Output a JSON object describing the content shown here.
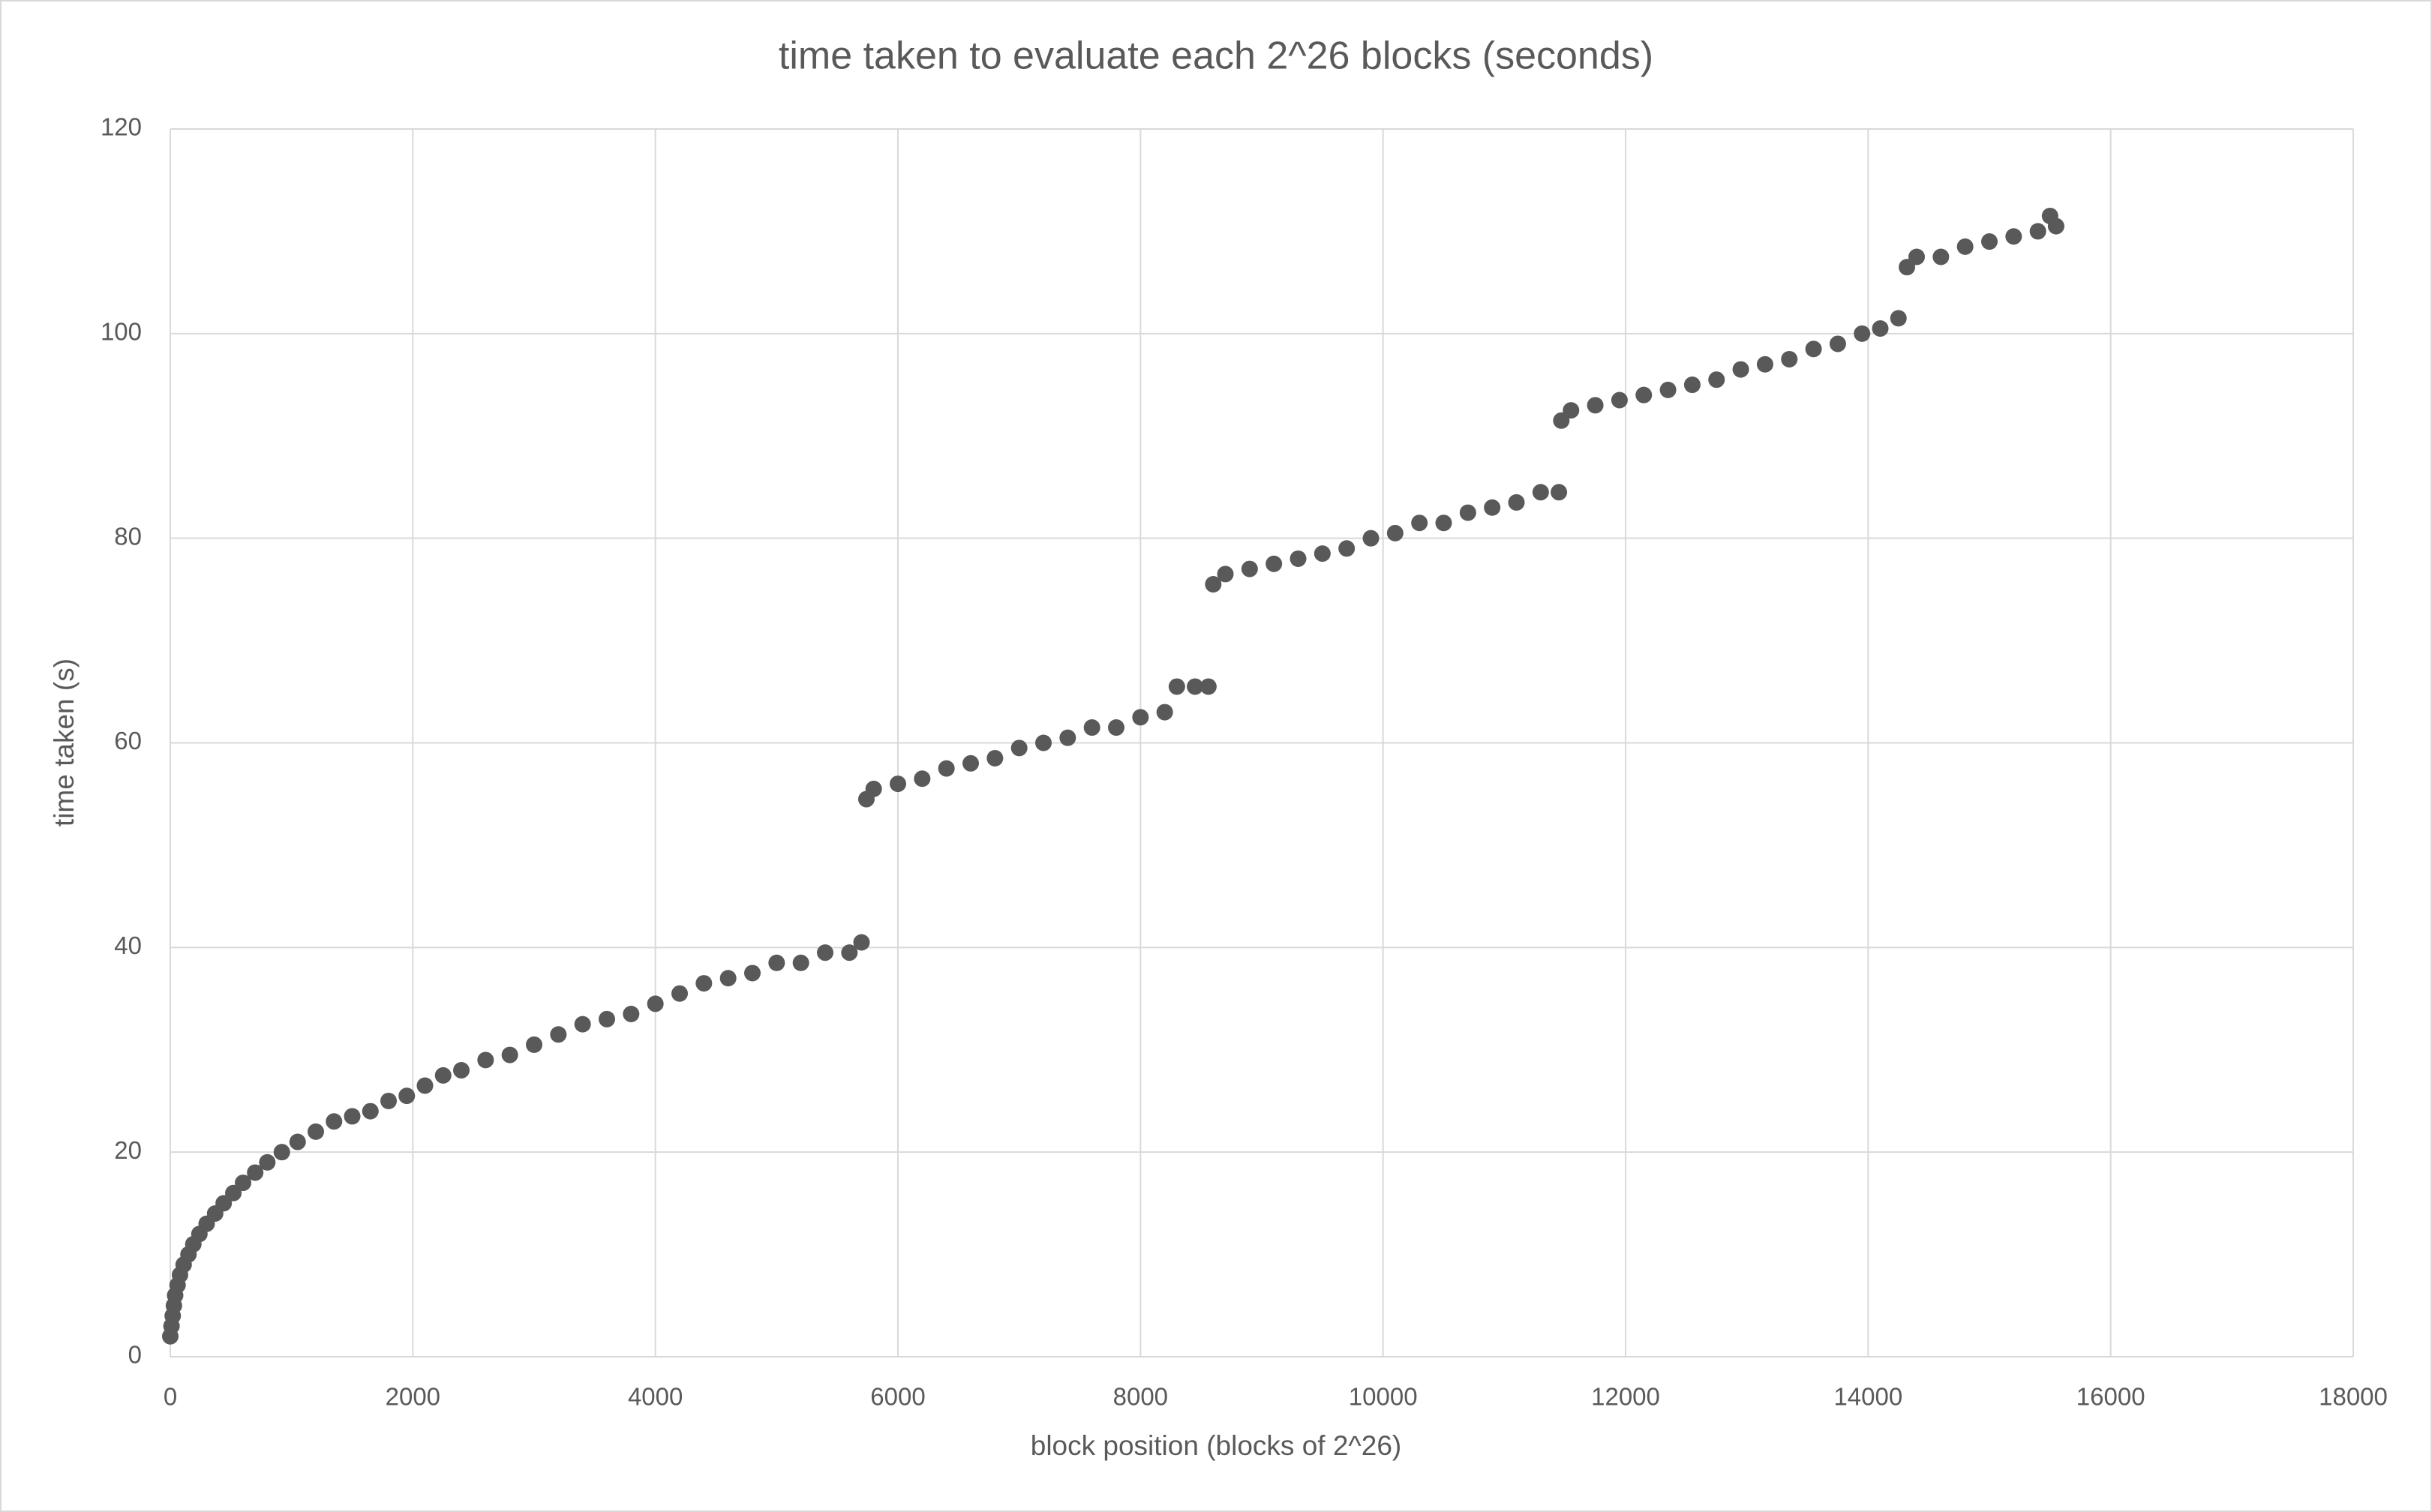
{
  "chart_data": {
    "type": "scatter",
    "title": "time taken to evaluate each 2^26 blocks (seconds)",
    "x_label": "block position (blocks of 2^26)",
    "y_label": "time taken (s)",
    "xlim": [
      0,
      18000
    ],
    "xticks": [
      0,
      2000,
      4000,
      6000,
      8000,
      10000,
      12000,
      14000,
      16000,
      18000
    ],
    "ylim": [
      0,
      120
    ],
    "yticks": [
      0,
      20,
      40,
      60,
      80,
      100,
      120
    ],
    "grid": true,
    "series": [
      {
        "color": "#595959",
        "x": [
          0,
          10,
          20,
          30,
          40,
          60,
          80,
          110,
          150,
          190,
          240,
          300,
          370,
          440,
          520,
          600,
          700,
          800,
          920,
          1050,
          1200,
          1350,
          1500,
          1650,
          1800,
          1950,
          2100,
          2250,
          2400,
          2600,
          2800,
          3000,
          3200,
          3400,
          3600,
          3800,
          4000,
          4200,
          4400,
          4600,
          4800,
          5000,
          5200,
          5400,
          5600,
          5700,
          5740,
          5800,
          6000,
          6200,
          6400,
          6600,
          6800,
          7000,
          7200,
          7400,
          7600,
          7800,
          8000,
          8200,
          8300,
          8450,
          8560,
          8600,
          8700,
          8900,
          9100,
          9300,
          9500,
          9700,
          9900,
          10100,
          10300,
          10500,
          10700,
          10900,
          11100,
          11300,
          11450,
          11470,
          11550,
          11750,
          11950,
          12150,
          12350,
          12550,
          12750,
          12950,
          13150,
          13350,
          13550,
          13750,
          13950,
          14100,
          14250,
          14320,
          14400,
          14600,
          14800,
          15000,
          15200,
          15400,
          15500,
          15550
        ],
        "values": [
          2,
          3,
          4,
          5,
          6,
          7,
          8,
          9,
          10,
          11,
          12,
          13,
          14,
          15,
          16,
          17,
          18,
          19,
          20,
          21,
          22,
          23,
          23.5,
          24,
          25,
          25.5,
          26.5,
          27.5,
          28,
          29,
          29.5,
          30.5,
          31.5,
          32.5,
          33,
          33.5,
          34.5,
          35.5,
          36.5,
          37,
          37.5,
          38.5,
          38.5,
          39.5,
          39.5,
          40.5,
          54.5,
          55.5,
          56,
          56.5,
          57.5,
          58,
          58.5,
          59.5,
          60,
          60.5,
          61.5,
          61.5,
          62.5,
          63,
          65.5,
          65.5,
          65.5,
          75.5,
          76.5,
          77,
          77.5,
          78,
          78.5,
          79,
          80,
          80.5,
          81.5,
          81.5,
          82.5,
          83,
          83.5,
          84.5,
          84.5,
          91.5,
          92.5,
          93,
          93.5,
          94,
          94.5,
          95,
          95.5,
          96.5,
          97,
          97.5,
          98.5,
          99,
          100,
          100.5,
          101.5,
          106.5,
          107.5,
          107.5,
          108.5,
          109,
          109.5,
          110,
          111.5,
          110.5
        ]
      }
    ]
  }
}
